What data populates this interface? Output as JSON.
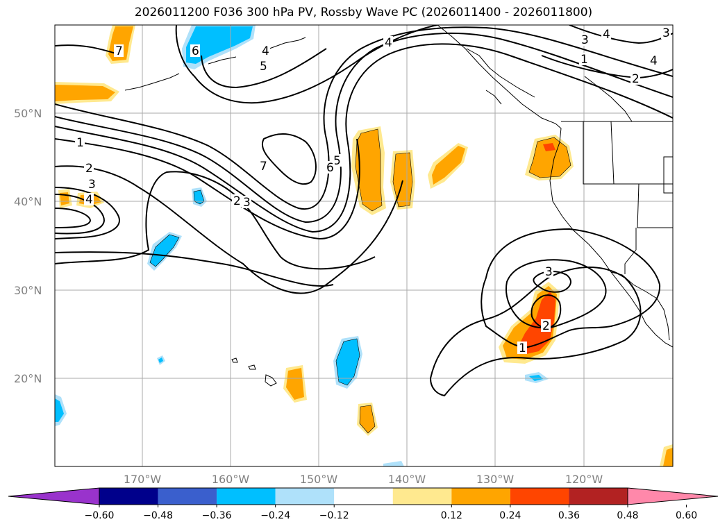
{
  "title": "2026011200 F036 300 hPa PV, Rossby Wave PC (2026011400 - 2026011800)",
  "lat_labels": [
    "50°N",
    "40°N",
    "30°N",
    "20°N"
  ],
  "lon_labels": [
    "170°W",
    "160°W",
    "150°W",
    "140°W",
    "130°W",
    "120°W"
  ],
  "colorbar": {
    "ticks": [
      "−0.60",
      "−0.48",
      "−0.36",
      "−0.24",
      "−0.12",
      "0.12",
      "0.24",
      "0.36",
      "0.48",
      "0.60"
    ],
    "colors": [
      "#9933cc",
      "#00008b",
      "#3a5fcd",
      "#00bfff",
      "#afe1fa",
      "#ffffff",
      "#ffe98f",
      "#ffa500",
      "#ff4500",
      "#b22222",
      "#ff88aa"
    ]
  },
  "contour_labels": [
    "1",
    "2",
    "3",
    "4",
    "5",
    "6",
    "7",
    "2",
    "3",
    "5",
    "6",
    "7",
    "4",
    "6",
    "5",
    "4",
    "3",
    "4",
    "1",
    "2",
    "3",
    "4",
    "3",
    "2",
    "1"
  ],
  "shading": {
    "positive_light": "#ffe98f",
    "positive": "#ffa500",
    "positive_strong": "#ff4500",
    "negative_light": "#afe1fa",
    "negative": "#00bfff"
  }
}
